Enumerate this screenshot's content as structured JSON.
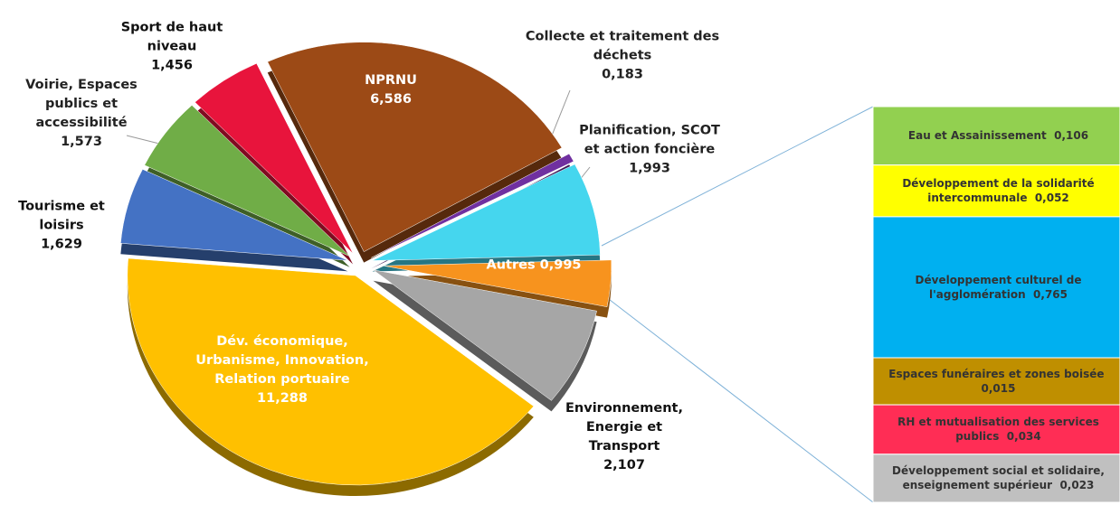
{
  "chart_data": [
    {
      "type": "pie",
      "categories": [
        "NPRNU",
        "Collecte et traitement des déchets",
        "Planification, SCOT et action foncière",
        "Autres",
        "Environnement, Energie et Transport",
        "Dév. économique, Urbanisme, Innovation, Relation portuaire",
        "Tourisme et loisirs",
        "Voirie, Espaces publics et accessibilité",
        "Sport de haut niveau"
      ],
      "values": [
        6.586,
        0.183,
        1.993,
        0.995,
        2.107,
        11.288,
        1.629,
        1.573,
        1.456
      ],
      "value_labels": [
        "6,586",
        "0,183",
        "1,993",
        "0,995",
        "2,107",
        "11,288",
        "1,629",
        "1,573",
        "1,456"
      ],
      "colors": [
        "#9c4a16",
        "#7030a0",
        "#45d6ee",
        "#f7931e",
        "#a6a6a6",
        "#ffc000",
        "#4472c4",
        "#70ad47",
        "#e8143c"
      ]
    },
    {
      "type": "bar",
      "categories": [
        "Eau et Assainissement",
        "Développement de la solidarité intercommunale",
        "Développement culturel de l'agglomération",
        "Espaces funéraires et zones boisée",
        "RH et mutualisation des services publics",
        "Développement social et solidaire, enseignement supérieur"
      ],
      "values": [
        0.106,
        0.052,
        0.765,
        0.015,
        0.034,
        0.023
      ],
      "value_labels": [
        "0,106",
        "0,052",
        "0,765",
        "0,015",
        "0,034",
        "0,023"
      ],
      "colors": [
        "#92d050",
        "#ffff00",
        "#00b0f0",
        "#bf8f00",
        "#ff2d55",
        "#c0c0c0"
      ]
    }
  ]
}
